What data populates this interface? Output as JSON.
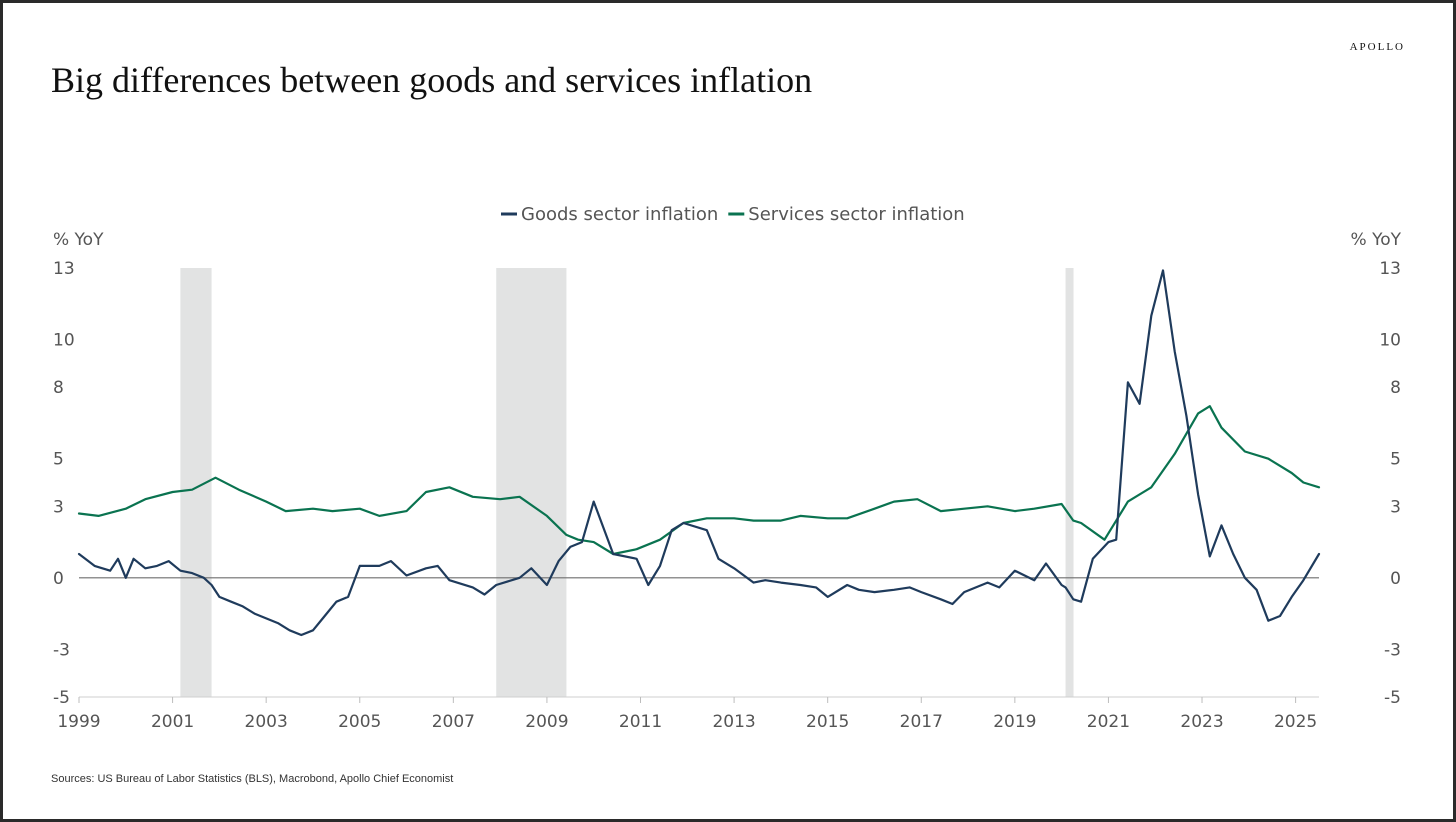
{
  "brand": "APOLLO",
  "title": "Big differences between goods and services inflation",
  "source": "Sources: US Bureau of Labor Statistics (BLS), Macrobond, Apollo Chief Economist",
  "colors": {
    "goods": "#1f3b5c",
    "services": "#0a7350",
    "recession": "#e2e3e3",
    "zero_line": "#6e6e6e"
  },
  "chart_data": {
    "type": "line",
    "ylabel_left": "% YoY",
    "ylabel_right": "% YoY",
    "ylim": [
      -5,
      13
    ],
    "yticks": [
      "13",
      "10",
      "8",
      "5",
      "3",
      "0",
      "-3",
      "-5"
    ],
    "xlim": [
      "1999-01",
      "2025-07"
    ],
    "xticks": [
      "1999",
      "2001",
      "2003",
      "2005",
      "2007",
      "2009",
      "2011",
      "2013",
      "2015",
      "2017",
      "2019",
      "2021",
      "2023",
      "2025"
    ],
    "legend": "top-center",
    "recessions": [
      [
        "2001-03",
        "2001-11"
      ],
      [
        "2007-12",
        "2009-06"
      ],
      [
        "2020-02",
        "2020-04"
      ]
    ],
    "series": [
      {
        "name": "Goods sector inflation",
        "points": [
          [
            "1999-01",
            1.0
          ],
          [
            "1999-05",
            0.5
          ],
          [
            "1999-09",
            0.3
          ],
          [
            "1999-11",
            0.8
          ],
          [
            "2000-01",
            0.0
          ],
          [
            "2000-03",
            0.8
          ],
          [
            "2000-06",
            0.4
          ],
          [
            "2000-09",
            0.5
          ],
          [
            "2000-12",
            0.7
          ],
          [
            "2001-03",
            0.3
          ],
          [
            "2001-06",
            0.2
          ],
          [
            "2001-09",
            0.0
          ],
          [
            "2001-11",
            -0.3
          ],
          [
            "2002-01",
            -0.8
          ],
          [
            "2002-04",
            -1.0
          ],
          [
            "2002-07",
            -1.2
          ],
          [
            "2002-10",
            -1.5
          ],
          [
            "2003-01",
            -1.7
          ],
          [
            "2003-04",
            -1.9
          ],
          [
            "2003-07",
            -2.2
          ],
          [
            "2003-10",
            -2.4
          ],
          [
            "2004-01",
            -2.2
          ],
          [
            "2004-04",
            -1.6
          ],
          [
            "2004-07",
            -1.0
          ],
          [
            "2004-10",
            -0.8
          ],
          [
            "2005-01",
            0.5
          ],
          [
            "2005-06",
            0.5
          ],
          [
            "2005-09",
            0.7
          ],
          [
            "2006-01",
            0.1
          ],
          [
            "2006-06",
            0.4
          ],
          [
            "2006-09",
            0.5
          ],
          [
            "2006-12",
            -0.1
          ],
          [
            "2007-06",
            -0.4
          ],
          [
            "2007-09",
            -0.7
          ],
          [
            "2007-12",
            -0.3
          ],
          [
            "2008-06",
            0.0
          ],
          [
            "2008-09",
            0.4
          ],
          [
            "2009-01",
            -0.3
          ],
          [
            "2009-04",
            0.7
          ],
          [
            "2009-07",
            1.3
          ],
          [
            "2009-10",
            1.5
          ],
          [
            "2010-01",
            3.2
          ],
          [
            "2010-06",
            1.0
          ],
          [
            "2010-12",
            0.8
          ],
          [
            "2011-03",
            -0.3
          ],
          [
            "2011-06",
            0.5
          ],
          [
            "2011-09",
            2.0
          ],
          [
            "2011-12",
            2.3
          ],
          [
            "2012-06",
            2.0
          ],
          [
            "2012-09",
            0.8
          ],
          [
            "2013-01",
            0.4
          ],
          [
            "2013-06",
            -0.2
          ],
          [
            "2013-09",
            -0.1
          ],
          [
            "2014-01",
            -0.2
          ],
          [
            "2014-06",
            -0.3
          ],
          [
            "2014-10",
            -0.4
          ],
          [
            "2015-01",
            -0.8
          ],
          [
            "2015-06",
            -0.3
          ],
          [
            "2015-09",
            -0.5
          ],
          [
            "2016-01",
            -0.6
          ],
          [
            "2016-06",
            -0.5
          ],
          [
            "2016-10",
            -0.4
          ],
          [
            "2017-01",
            -0.6
          ],
          [
            "2017-06",
            -0.9
          ],
          [
            "2017-09",
            -1.1
          ],
          [
            "2017-12",
            -0.6
          ],
          [
            "2018-06",
            -0.2
          ],
          [
            "2018-09",
            -0.4
          ],
          [
            "2019-01",
            0.3
          ],
          [
            "2019-06",
            -0.1
          ],
          [
            "2019-09",
            0.6
          ],
          [
            "2020-01",
            -0.3
          ],
          [
            "2020-02",
            -0.4
          ],
          [
            "2020-04",
            -0.9
          ],
          [
            "2020-06",
            -1.0
          ],
          [
            "2020-09",
            0.8
          ],
          [
            "2021-01",
            1.5
          ],
          [
            "2021-03",
            1.6
          ],
          [
            "2021-06",
            8.2
          ],
          [
            "2021-09",
            7.3
          ],
          [
            "2021-12",
            11.0
          ],
          [
            "2022-03",
            12.9
          ],
          [
            "2022-06",
            9.5
          ],
          [
            "2022-09",
            6.8
          ],
          [
            "2022-12",
            3.5
          ],
          [
            "2023-03",
            0.9
          ],
          [
            "2023-06",
            2.2
          ],
          [
            "2023-09",
            1.0
          ],
          [
            "2023-12",
            0.0
          ],
          [
            "2024-03",
            -0.5
          ],
          [
            "2024-06",
            -1.8
          ],
          [
            "2024-09",
            -1.6
          ],
          [
            "2024-12",
            -0.8
          ],
          [
            "2025-03",
            -0.1
          ],
          [
            "2025-07",
            1.0
          ]
        ]
      },
      {
        "name": "Services sector inflation",
        "points": [
          [
            "1999-01",
            2.7
          ],
          [
            "1999-06",
            2.6
          ],
          [
            "2000-01",
            2.9
          ],
          [
            "2000-06",
            3.3
          ],
          [
            "2001-01",
            3.6
          ],
          [
            "2001-06",
            3.7
          ],
          [
            "2001-12",
            4.2
          ],
          [
            "2002-06",
            3.7
          ],
          [
            "2003-01",
            3.2
          ],
          [
            "2003-06",
            2.8
          ],
          [
            "2004-01",
            2.9
          ],
          [
            "2004-06",
            2.8
          ],
          [
            "2005-01",
            2.9
          ],
          [
            "2005-06",
            2.6
          ],
          [
            "2006-01",
            2.8
          ],
          [
            "2006-06",
            3.6
          ],
          [
            "2006-12",
            3.8
          ],
          [
            "2007-06",
            3.4
          ],
          [
            "2008-01",
            3.3
          ],
          [
            "2008-06",
            3.4
          ],
          [
            "2009-01",
            2.6
          ],
          [
            "2009-06",
            1.8
          ],
          [
            "2009-09",
            1.6
          ],
          [
            "2010-01",
            1.5
          ],
          [
            "2010-06",
            1.0
          ],
          [
            "2010-12",
            1.2
          ],
          [
            "2011-06",
            1.6
          ],
          [
            "2011-12",
            2.3
          ],
          [
            "2012-06",
            2.5
          ],
          [
            "2013-01",
            2.5
          ],
          [
            "2013-06",
            2.4
          ],
          [
            "2014-01",
            2.4
          ],
          [
            "2014-06",
            2.6
          ],
          [
            "2015-01",
            2.5
          ],
          [
            "2015-06",
            2.5
          ],
          [
            "2016-01",
            2.9
          ],
          [
            "2016-06",
            3.2
          ],
          [
            "2016-12",
            3.3
          ],
          [
            "2017-06",
            2.8
          ],
          [
            "2017-12",
            2.9
          ],
          [
            "2018-06",
            3.0
          ],
          [
            "2019-01",
            2.8
          ],
          [
            "2019-06",
            2.9
          ],
          [
            "2020-01",
            3.1
          ],
          [
            "2020-04",
            2.4
          ],
          [
            "2020-06",
            2.3
          ],
          [
            "2020-12",
            1.6
          ],
          [
            "2021-06",
            3.2
          ],
          [
            "2021-12",
            3.8
          ],
          [
            "2022-06",
            5.2
          ],
          [
            "2022-12",
            6.9
          ],
          [
            "2023-03",
            7.2
          ],
          [
            "2023-06",
            6.3
          ],
          [
            "2023-12",
            5.3
          ],
          [
            "2024-06",
            5.0
          ],
          [
            "2024-12",
            4.4
          ],
          [
            "2025-03",
            4.0
          ],
          [
            "2025-07",
            3.8
          ]
        ]
      }
    ]
  }
}
